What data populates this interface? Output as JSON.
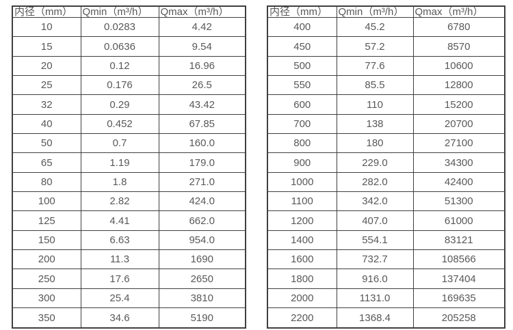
{
  "page": {
    "background_color": "#ffffff",
    "border_color": "#3e3e3e",
    "text_color": "#58585a"
  },
  "chart_data": [
    {
      "type": "table",
      "name": "flow-rate-table-small-diameters",
      "columns": [
        "内径（mm）",
        "Qmin（m³/h）",
        "Qmax（m³/h）"
      ],
      "rows": [
        [
          "10",
          "0.0283",
          "4.42"
        ],
        [
          "15",
          "0.0636",
          "9.54"
        ],
        [
          "20",
          "0.12",
          "16.96"
        ],
        [
          "25",
          "0.176",
          "26.5"
        ],
        [
          "32",
          "0.29",
          "43.42"
        ],
        [
          "40",
          "0.452",
          "67.85"
        ],
        [
          "50",
          "0.7",
          "160.0"
        ],
        [
          "65",
          "1.19",
          "179.0"
        ],
        [
          "80",
          "1.8",
          "271.0"
        ],
        [
          "100",
          "2.82",
          "424.0"
        ],
        [
          "125",
          "4.41",
          "662.0"
        ],
        [
          "150",
          "6.63",
          "954.0"
        ],
        [
          "200",
          "11.3",
          "1690"
        ],
        [
          "250",
          "17.6",
          "2650"
        ],
        [
          "300",
          "25.4",
          "3810"
        ],
        [
          "350",
          "34.6",
          "5190"
        ]
      ]
    },
    {
      "type": "table",
      "name": "flow-rate-table-large-diameters",
      "columns": [
        "内径（mm）",
        "Qmin（m³/h）",
        "Qmax（m³/h）"
      ],
      "rows": [
        [
          "400",
          "45.2",
          "6780"
        ],
        [
          "450",
          "57.2",
          "8570"
        ],
        [
          "500",
          "77.6",
          "10600"
        ],
        [
          "550",
          "85.5",
          "12800"
        ],
        [
          "600",
          "110",
          "15200"
        ],
        [
          "700",
          "138",
          "20700"
        ],
        [
          "800",
          "180",
          "27100"
        ],
        [
          "900",
          "229.0",
          "34300"
        ],
        [
          "1000",
          "282.0",
          "42400"
        ],
        [
          "1100",
          "342.0",
          "51300"
        ],
        [
          "1200",
          "407.0",
          "61000"
        ],
        [
          "1400",
          "554.1",
          "83121"
        ],
        [
          "1600",
          "732.7",
          "108566"
        ],
        [
          "1800",
          "916.0",
          "137404"
        ],
        [
          "2000",
          "1131.0",
          "169635"
        ],
        [
          "2200",
          "1368.4",
          "205258"
        ]
      ]
    }
  ]
}
